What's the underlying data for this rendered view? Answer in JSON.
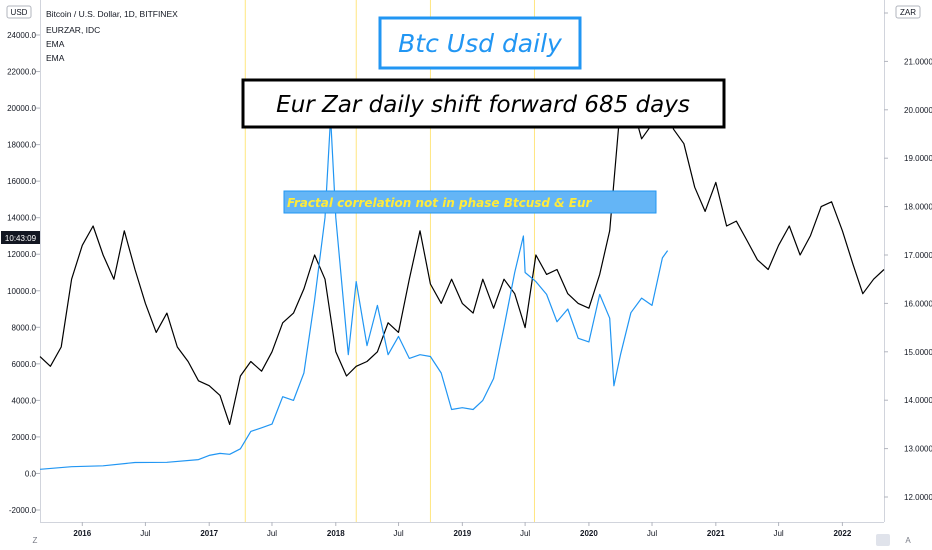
{
  "chart_data": {
    "type": "line",
    "symbol_legend": "Bitcoin / U.S. Dollar, 1D, BITFINEX",
    "overlay_legend": "EURZAR, IDC",
    "indicators": [
      "EMA",
      "EMA"
    ],
    "left_axis_currency": "USD",
    "right_axis_currency": "ZAR",
    "left_axis": {
      "ticks": [
        "24000.0",
        "22000.0",
        "20000.0",
        "18000.0",
        "16000.0",
        "14000.0",
        "12000.0",
        "10000.0",
        "8000.0",
        "6000.0",
        "4000.0",
        "2000.0",
        "0.0",
        "-2000.0"
      ],
      "range": [
        -2000,
        24000
      ]
    },
    "right_axis": {
      "ticks": [
        "22",
        "21.000000",
        "20.000000",
        "19.000000",
        "18.000000",
        "17.000000",
        "16.000000",
        "15.000000",
        "14.000000",
        "13.000000",
        "12.000000"
      ],
      "range": [
        12,
        22
      ]
    },
    "x_ticks": [
      "2016",
      "Jul",
      "2017",
      "Jul",
      "2018",
      "Jul",
      "2019",
      "Jul",
      "2020",
      "Jul",
      "2021",
      "Jul",
      "2022"
    ],
    "x_range": [
      "2015-09",
      "2022-05"
    ],
    "price_label": "10:43:09",
    "footer_left": "Z",
    "footer_right": "A",
    "annotations": {
      "title": "Btc  Usd daily",
      "subtitle": "Eur Zar  daily shift forward 685 days",
      "note": "Fractal correlation not in phase  Btcusd & Eur"
    },
    "colors": {
      "btc_line": "#2196f3",
      "eurzar_line": "#000000",
      "title_border": "#2196f3",
      "title_text": "#2196f3",
      "note_fill": "#64b5f6",
      "note_text": "#ffeb3b",
      "vline": "#ffe680"
    },
    "series": [
      {
        "name": "Bitcoin / U.S. Dollar, 1D, BITFINEX",
        "axis": "left",
        "points": [
          [
            "2015-09-01",
            230
          ],
          [
            "2015-12-01",
            370
          ],
          [
            "2016-03-01",
            420
          ],
          [
            "2016-06-01",
            600
          ],
          [
            "2016-09-01",
            610
          ],
          [
            "2016-12-01",
            760
          ],
          [
            "2017-01-01",
            990
          ],
          [
            "2017-02-01",
            1100
          ],
          [
            "2017-03-01",
            1050
          ],
          [
            "2017-04-01",
            1350
          ],
          [
            "2017-05-01",
            2300
          ],
          [
            "2017-06-01",
            2500
          ],
          [
            "2017-07-01",
            2700
          ],
          [
            "2017-08-01",
            4200
          ],
          [
            "2017-09-01",
            4000
          ],
          [
            "2017-10-01",
            5500
          ],
          [
            "2017-11-01",
            9500
          ],
          [
            "2017-12-01",
            14000
          ],
          [
            "2017-12-17",
            19500
          ],
          [
            "2018-01-01",
            14000
          ],
          [
            "2018-02-06",
            6500
          ],
          [
            "2018-03-01",
            10500
          ],
          [
            "2018-04-01",
            7000
          ],
          [
            "2018-05-01",
            9200
          ],
          [
            "2018-06-01",
            6500
          ],
          [
            "2018-07-01",
            7500
          ],
          [
            "2018-08-01",
            6300
          ],
          [
            "2018-09-01",
            6500
          ],
          [
            "2018-10-01",
            6400
          ],
          [
            "2018-11-01",
            5500
          ],
          [
            "2018-12-01",
            3500
          ],
          [
            "2019-01-01",
            3600
          ],
          [
            "2019-02-01",
            3500
          ],
          [
            "2019-03-01",
            4000
          ],
          [
            "2019-04-01",
            5200
          ],
          [
            "2019-05-01",
            8000
          ],
          [
            "2019-06-01",
            11000
          ],
          [
            "2019-06-26",
            13000
          ],
          [
            "2019-07-01",
            11000
          ],
          [
            "2019-08-01",
            10500
          ],
          [
            "2019-09-01",
            9800
          ],
          [
            "2019-10-01",
            8300
          ],
          [
            "2019-11-01",
            9000
          ],
          [
            "2019-12-01",
            7400
          ],
          [
            "2020-01-01",
            7200
          ],
          [
            "2020-02-01",
            9800
          ],
          [
            "2020-03-01",
            8500
          ],
          [
            "2020-03-13",
            4800
          ],
          [
            "2020-04-01",
            6500
          ],
          [
            "2020-05-01",
            8800
          ],
          [
            "2020-06-01",
            9600
          ],
          [
            "2020-07-01",
            9200
          ],
          [
            "2020-07-31",
            11800
          ],
          [
            "2020-08-15",
            12200
          ]
        ]
      },
      {
        "name": "EURZAR, IDC",
        "axis": "right",
        "points": [
          [
            "2015-09-01",
            14.9
          ],
          [
            "2015-10-01",
            14.7
          ],
          [
            "2015-11-01",
            15.1
          ],
          [
            "2015-12-01",
            16.5
          ],
          [
            "2016-01-01",
            17.2
          ],
          [
            "2016-02-01",
            17.6
          ],
          [
            "2016-03-01",
            17.0
          ],
          [
            "2016-04-01",
            16.5
          ],
          [
            "2016-05-01",
            17.5
          ],
          [
            "2016-06-01",
            16.7
          ],
          [
            "2016-07-01",
            16.0
          ],
          [
            "2016-08-01",
            15.4
          ],
          [
            "2016-09-01",
            15.8
          ],
          [
            "2016-10-01",
            15.1
          ],
          [
            "2016-11-01",
            14.8
          ],
          [
            "2016-12-01",
            14.4
          ],
          [
            "2017-01-01",
            14.3
          ],
          [
            "2017-02-01",
            14.1
          ],
          [
            "2017-03-01",
            13.5
          ],
          [
            "2017-04-01",
            14.5
          ],
          [
            "2017-05-01",
            14.8
          ],
          [
            "2017-06-01",
            14.6
          ],
          [
            "2017-07-01",
            15.0
          ],
          [
            "2017-08-01",
            15.6
          ],
          [
            "2017-09-01",
            15.8
          ],
          [
            "2017-10-01",
            16.3
          ],
          [
            "2017-11-01",
            17.0
          ],
          [
            "2017-12-01",
            16.5
          ],
          [
            "2018-01-01",
            15.0
          ],
          [
            "2018-02-01",
            14.5
          ],
          [
            "2018-03-01",
            14.7
          ],
          [
            "2018-04-01",
            14.8
          ],
          [
            "2018-05-01",
            15.0
          ],
          [
            "2018-06-01",
            15.6
          ],
          [
            "2018-07-01",
            15.4
          ],
          [
            "2018-08-01",
            16.5
          ],
          [
            "2018-09-01",
            17.5
          ],
          [
            "2018-10-01",
            16.4
          ],
          [
            "2018-11-01",
            16.0
          ],
          [
            "2018-12-01",
            16.5
          ],
          [
            "2019-01-01",
            16.0
          ],
          [
            "2019-02-01",
            15.8
          ],
          [
            "2019-03-01",
            16.5
          ],
          [
            "2019-04-01",
            15.9
          ],
          [
            "2019-05-01",
            16.5
          ],
          [
            "2019-06-01",
            16.2
          ],
          [
            "2019-07-01",
            15.5
          ],
          [
            "2019-08-01",
            17.0
          ],
          [
            "2019-09-01",
            16.6
          ],
          [
            "2019-10-01",
            16.7
          ],
          [
            "2019-11-01",
            16.2
          ],
          [
            "2019-12-01",
            16.0
          ],
          [
            "2020-01-01",
            15.9
          ],
          [
            "2020-02-01",
            16.6
          ],
          [
            "2020-03-01",
            17.5
          ],
          [
            "2020-04-01",
            20.1
          ],
          [
            "2020-05-01",
            20.2
          ],
          [
            "2020-06-01",
            19.4
          ],
          [
            "2020-07-01",
            19.7
          ],
          [
            "2020-08-01",
            20.5
          ],
          [
            "2020-09-01",
            19.6
          ],
          [
            "2020-10-01",
            19.3
          ],
          [
            "2020-11-01",
            18.4
          ],
          [
            "2020-12-01",
            17.9
          ],
          [
            "2021-01-01",
            18.5
          ],
          [
            "2021-02-01",
            17.6
          ],
          [
            "2021-03-01",
            17.7
          ],
          [
            "2021-04-01",
            17.3
          ],
          [
            "2021-05-01",
            16.9
          ],
          [
            "2021-06-01",
            16.7
          ],
          [
            "2021-07-01",
            17.2
          ],
          [
            "2021-08-01",
            17.6
          ],
          [
            "2021-09-01",
            17.0
          ],
          [
            "2021-10-01",
            17.4
          ],
          [
            "2021-11-01",
            18.0
          ],
          [
            "2021-12-01",
            18.1
          ],
          [
            "2022-01-01",
            17.5
          ],
          [
            "2022-02-01",
            16.8
          ],
          [
            "2022-03-01",
            16.2
          ],
          [
            "2022-04-01",
            16.5
          ],
          [
            "2022-05-01",
            16.7
          ]
        ]
      }
    ],
    "vertical_markers": [
      "2017-04-15",
      "2018-03-01",
      "2018-10-01",
      "2019-07-28"
    ]
  }
}
